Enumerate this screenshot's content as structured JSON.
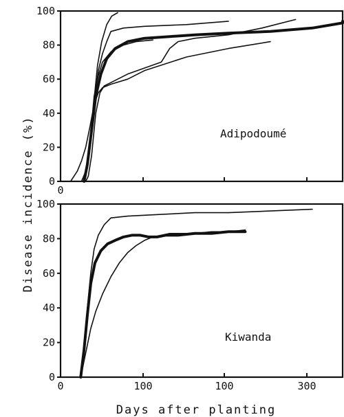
{
  "chart_data": [
    {
      "type": "line",
      "panel_label": "Adipodoumé",
      "ylim": [
        0,
        100
      ],
      "yticks": [
        0,
        20,
        40,
        60,
        80,
        100
      ],
      "xtick_labels": [
        "0",
        "",
        "",
        "",
        ""
      ],
      "series": [
        {
          "weight": "thin",
          "x": [
            27,
            31,
            36,
            40,
            44,
            49,
            55,
            61,
            68
          ],
          "y": [
            0,
            8,
            25,
            48,
            68,
            82,
            92,
            97,
            99
          ]
        },
        {
          "weight": "thin",
          "x": [
            25,
            30,
            35,
            40,
            45,
            50,
            55,
            60,
            75,
            100,
            150,
            200
          ],
          "y": [
            0,
            6,
            22,
            45,
            65,
            75,
            82,
            88,
            90,
            91,
            92,
            94
          ]
        },
        {
          "weight": "thin",
          "x": [
            12,
            20,
            25,
            30,
            35,
            40,
            45,
            50,
            60,
            80,
            100,
            150,
            200,
            250
          ],
          "y": [
            0,
            6,
            12,
            20,
            32,
            45,
            52,
            55,
            57,
            60,
            65,
            73,
            78,
            82
          ]
        },
        {
          "weight": "thin",
          "x": [
            30,
            33,
            37,
            42,
            47,
            52,
            60,
            80,
            120,
            130,
            140,
            160,
            200,
            240,
            280
          ],
          "y": [
            0,
            3,
            15,
            40,
            52,
            56,
            58,
            63,
            70,
            78,
            82,
            84,
            86,
            90,
            95
          ]
        },
        {
          "weight": "thin",
          "x": [
            28,
            32,
            36,
            40,
            45,
            50,
            60,
            75,
            90,
            110
          ],
          "y": [
            0,
            10,
            28,
            50,
            62,
            70,
            76,
            80,
            82,
            83
          ]
        },
        {
          "weight": "thick",
          "x": [
            28,
            32,
            37,
            42,
            48,
            55,
            65,
            80,
            100,
            130,
            160,
            200,
            250,
            300,
            340,
            360
          ],
          "y": [
            0,
            10,
            30,
            50,
            63,
            72,
            78,
            82,
            84,
            85,
            86,
            87,
            88,
            90,
            93,
            94
          ]
        }
      ]
    },
    {
      "type": "line",
      "panel_label": "Kiwanda",
      "xlabel": "Days after planting",
      "ylim": [
        0,
        100
      ],
      "yticks": [
        0,
        20,
        40,
        60,
        80,
        100
      ],
      "xtick_labels": [
        "0",
        "100",
        "100",
        "300"
      ],
      "series": [
        {
          "weight": "thin",
          "x": [
            24,
            28,
            32,
            36,
            40,
            45,
            52,
            60,
            80,
            120,
            160,
            200,
            250,
            300
          ],
          "y": [
            0,
            18,
            40,
            60,
            74,
            82,
            88,
            92,
            93,
            94,
            95,
            95,
            96,
            97
          ]
        },
        {
          "weight": "thin",
          "x": [
            24,
            30,
            36,
            42,
            50,
            60,
            70,
            80,
            90,
            100,
            110,
            120,
            130,
            140,
            160,
            180,
            200,
            220
          ],
          "y": [
            0,
            14,
            28,
            38,
            48,
            58,
            66,
            72,
            76,
            79,
            81,
            82,
            83,
            83,
            83,
            84,
            84,
            85
          ]
        },
        {
          "weight": "thick",
          "x": [
            24,
            28,
            32,
            36,
            41,
            48,
            56,
            65,
            75,
            85,
            95,
            105,
            115,
            125,
            140,
            160,
            180,
            200,
            220
          ],
          "y": [
            0,
            16,
            36,
            54,
            66,
            73,
            77,
            79,
            81,
            82,
            82,
            81,
            81,
            82,
            82,
            83,
            83,
            84,
            84
          ]
        }
      ]
    }
  ],
  "shared_ylabel": "Disease incidence (%)"
}
